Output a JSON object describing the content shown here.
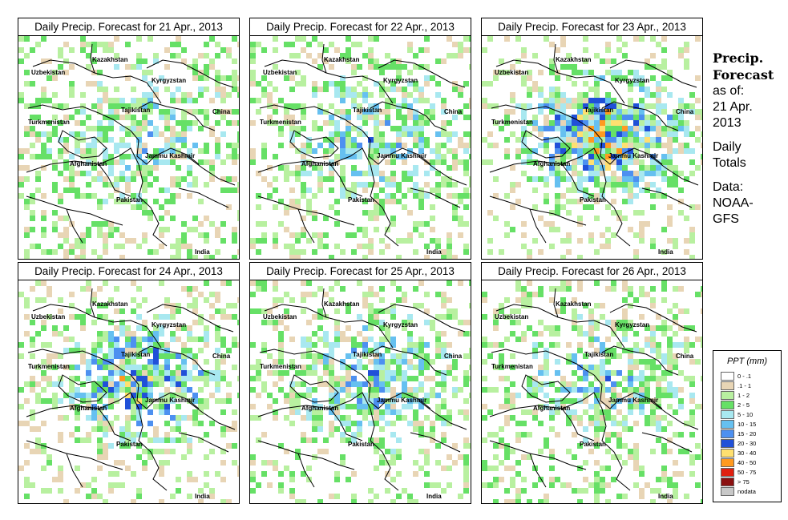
{
  "panels": [
    {
      "title": "Daily Precip. Forecast for  21 Apr., 2013",
      "intensity": 0.35
    },
    {
      "title": "Daily Precip. Forecast for  22 Apr., 2013",
      "intensity": 0.45
    },
    {
      "title": "Daily Precip. Forecast for  23 Apr., 2013",
      "intensity": 0.9
    },
    {
      "title": "Daily Precip. Forecast for  24 Apr., 2013",
      "intensity": 0.75
    },
    {
      "title": "Daily Precip. Forecast for  25 Apr., 2013",
      "intensity": 0.5
    },
    {
      "title": "Daily Precip. Forecast for  26 Apr., 2013",
      "intensity": 0.45
    }
  ],
  "map_labels": {
    "kazakhstan": "Kazakhstan",
    "uzbekistan": "Uzbekistan",
    "kyrgyzstan": "Kyrgyzstan",
    "tajikistan": "Tajikistan",
    "turkmenistan": "Turkmenistan",
    "china": "China",
    "afghanistan": "Afghanistan",
    "jammu_kashmir": "Jammu Kashmir",
    "pakistan": "Pakistan",
    "india": "India"
  },
  "sidebar": {
    "title_line1": "Precip.",
    "title_line2": "Forecast",
    "asof_line1": "as of:",
    "asof_line2": "21 Apr.",
    "asof_line3": "2013",
    "daily_line1": "Daily",
    "daily_line2": "Totals",
    "data_line1": "Data:",
    "data_line2": "NOAA-",
    "data_line3": "GFS"
  },
  "legend": {
    "title": "PPT (mm)",
    "items": [
      {
        "label": "0 - .1",
        "color": "#ffffff"
      },
      {
        "label": ".1 - 1",
        "color": "#e8d5b5"
      },
      {
        "label": "1 - 2",
        "color": "#b8f0a0"
      },
      {
        "label": "2 - 5",
        "color": "#66e066"
      },
      {
        "label": "5 - 10",
        "color": "#a8e8f0"
      },
      {
        "label": "10 - 15",
        "color": "#66c0f0"
      },
      {
        "label": "15 - 20",
        "color": "#4d90f0"
      },
      {
        "label": "20 - 30",
        "color": "#2050d8"
      },
      {
        "label": "30 - 40",
        "color": "#ffe070"
      },
      {
        "label": "40 - 50",
        "color": "#ff9a20"
      },
      {
        "label": "50 - 75",
        "color": "#e02010"
      },
      {
        "label": "> 75",
        "color": "#8b1010"
      },
      {
        "label": "nodata",
        "color": "#c8c8c8"
      }
    ]
  }
}
